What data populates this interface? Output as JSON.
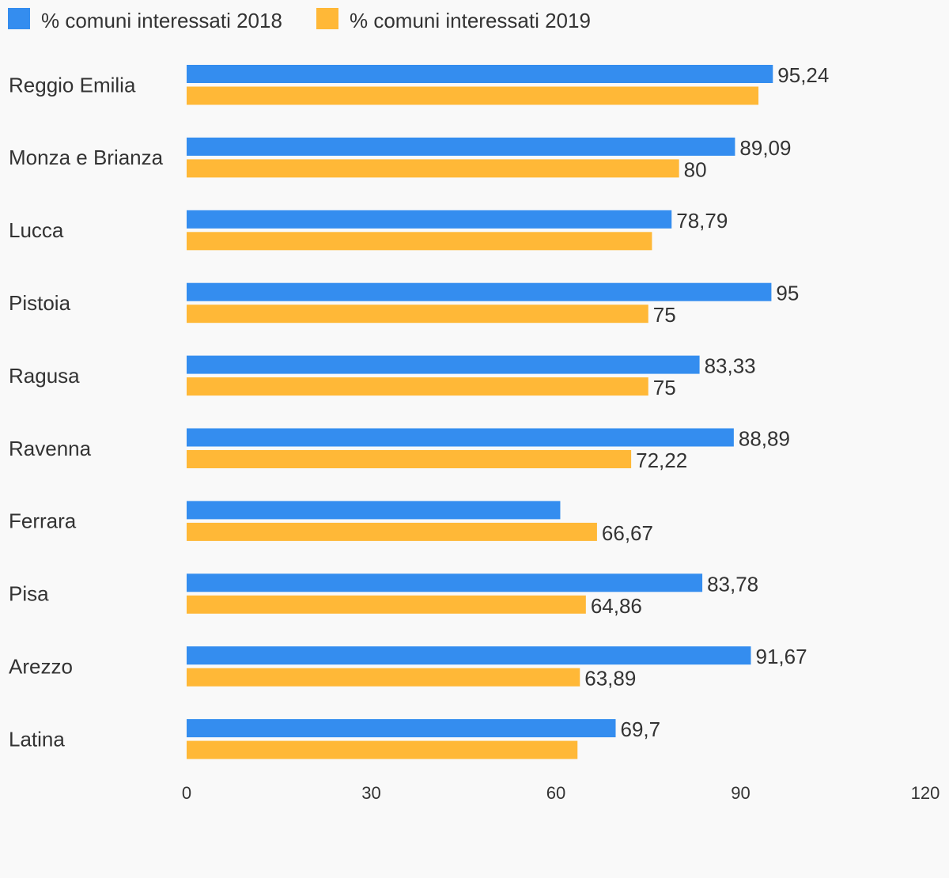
{
  "chart_data": {
    "type": "bar",
    "orientation": "horizontal",
    "categories": [
      "Reggio Emilia",
      "Monza e Brianza",
      "Lucca",
      "Pistoia",
      "Ragusa",
      "Ravenna",
      "Ferrara",
      "Pisa",
      "Arezzo",
      "Latina"
    ],
    "series": [
      {
        "name": "% comuni interessati 2018",
        "color": "#348def",
        "values": [
          95.24,
          89.09,
          78.79,
          95,
          83.33,
          88.89,
          60.7,
          83.78,
          91.67,
          69.7
        ],
        "labels": [
          "95,24",
          "89,09",
          "78,79",
          "95",
          "83,33",
          "88,89",
          "",
          "83,78",
          "91,67",
          "69,7"
        ]
      },
      {
        "name": "% comuni interessati 2019",
        "color": "#ffb837",
        "values": [
          92.9,
          80,
          75.6,
          75,
          75,
          72.22,
          66.67,
          64.86,
          63.89,
          63.5
        ],
        "labels": [
          "",
          "80",
          "",
          "75",
          "75",
          "72,22",
          "66,67",
          "64,86",
          "63,89",
          ""
        ]
      }
    ],
    "xlim": [
      0,
      120
    ],
    "xticks": [
      "0",
      "30",
      "60",
      "90",
      "120"
    ],
    "grid": false,
    "legend_position": "top-left",
    "title": "",
    "xlabel": "",
    "ylabel": ""
  }
}
